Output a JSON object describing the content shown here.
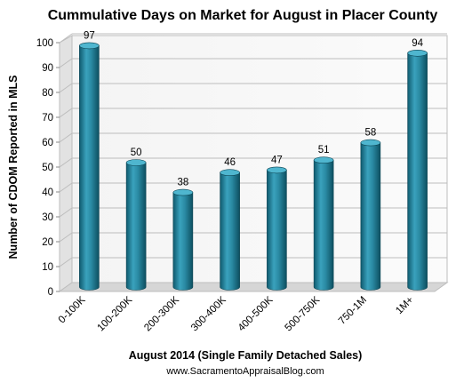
{
  "chart_data": {
    "type": "bar",
    "title": "Cummulative  Days on Market for August in Placer County",
    "xlabel": "August 2014  (Single Family Detached Sales)",
    "ylabel": "Number of CDOM Reported in MLS",
    "categories": [
      "0-100K",
      "100-200K",
      "200-300K",
      "300-400K",
      "400-500K",
      "500-750K",
      "750-1M",
      "1M+"
    ],
    "values": [
      97,
      50,
      38,
      46,
      47,
      51,
      58,
      94
    ],
    "ylim": [
      0,
      100
    ],
    "yticks": [
      0,
      10,
      20,
      30,
      40,
      50,
      60,
      70,
      80,
      90,
      100
    ],
    "grid": true,
    "legend": "none",
    "bar_color": "#2a8aa3",
    "source": "www.SacramentoAppraisalBlog.com"
  }
}
